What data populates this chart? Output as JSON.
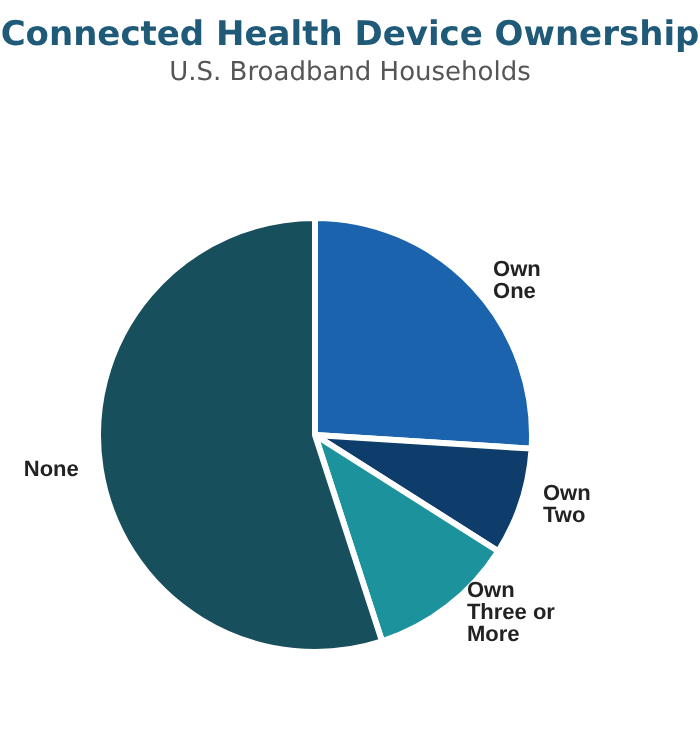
{
  "chart_data": {
    "type": "pie",
    "title": "Connected Health Device Ownership",
    "subtitle": "U.S. Broadband Households",
    "categories": [
      "Own One",
      "Own Two",
      "Own Three or More",
      "None"
    ],
    "values": [
      26,
      8,
      11,
      55
    ],
    "colors": [
      "#1c63ad",
      "#0e3d6b",
      "#1b929c",
      "#174f5c"
    ],
    "legend": false
  }
}
